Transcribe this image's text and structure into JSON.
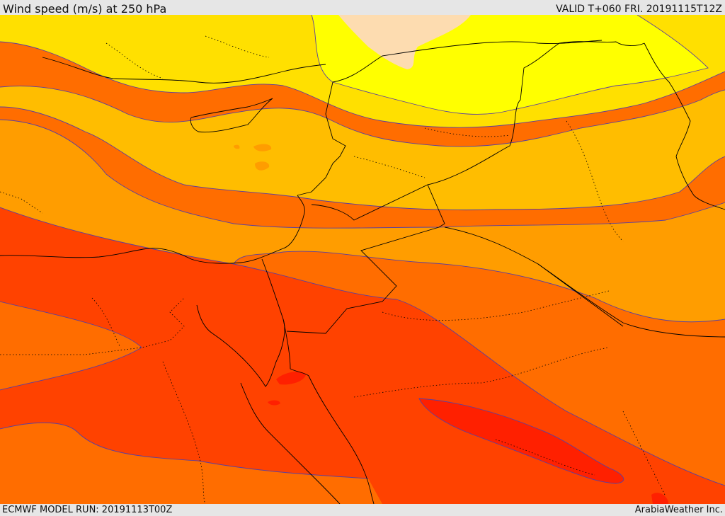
{
  "header": {
    "title": "Wind speed (m/s) at 250 hPa",
    "valid": "VALID T+060 FRI. 20191115T12Z"
  },
  "footer": {
    "model_run": "ECMWF MODEL RUN: 20191113T00Z",
    "credit": "ArabiaWeather Inc."
  },
  "colors": {
    "band_wheat": "#fddcb0",
    "band_yellow": "#ffff00",
    "band_gold": "#ffe000",
    "band_amber": "#ffbd00",
    "band_orange": "#ff9d00",
    "band_dark_orange": "#ff6d00",
    "band_red_orange": "#ff4200",
    "band_red": "#ff2000",
    "contour_line": "#5a3fa0",
    "border_line": "#000000"
  }
}
